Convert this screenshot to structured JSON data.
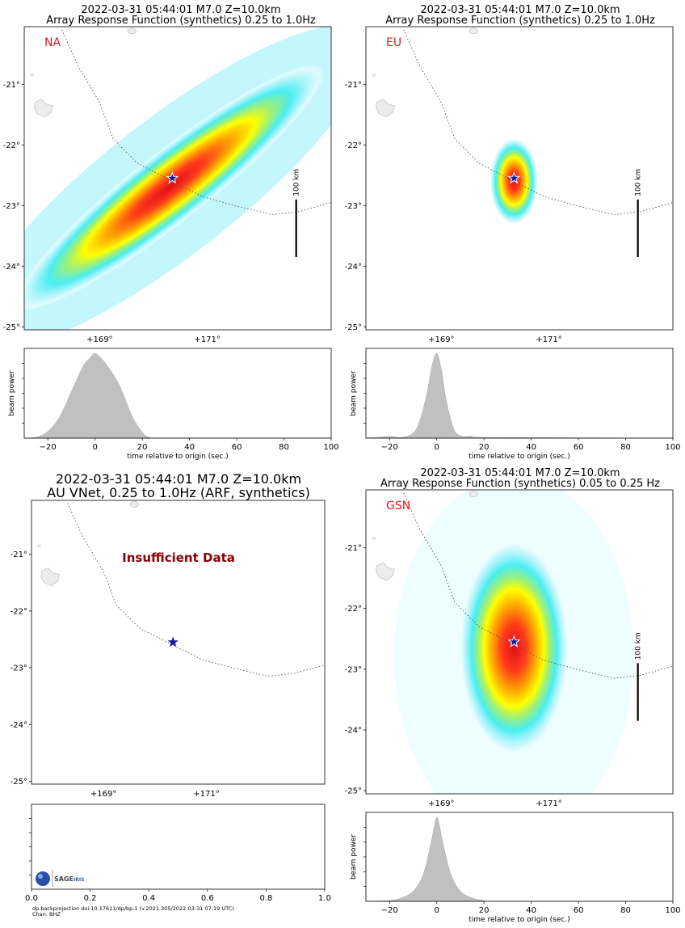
{
  "palette": {
    "heat": [
      "#ffffff",
      "#e0fbff",
      "#aaf4fb",
      "#4aeef2",
      "#9cf07a",
      "#ffff00",
      "#ffb000",
      "#ff3a1a",
      "#e01018"
    ],
    "beam_fill": "#c0c0c0",
    "star_fill": "#1a1aa0",
    "region_color": "#e8141c",
    "insufficient_color": "#8b0000"
  },
  "map_ticks": {
    "lat_labels": [
      "-21°",
      "-22°",
      "-23°",
      "-24°",
      "-25°"
    ],
    "lon_labels": [
      "+169°",
      "+171°"
    ]
  },
  "scale_bar_label": "100 km",
  "beam": {
    "ylabel": "beam power",
    "xlabel": "time relative to origin (sec.)",
    "xticks": [
      "−20",
      "0",
      "20",
      "40",
      "60",
      "80",
      "100"
    ]
  },
  "empty_axis": {
    "xticks": [
      "0.0",
      "0.2",
      "0.4",
      "0.6",
      "0.8",
      "1.0"
    ]
  },
  "credit": {
    "line1": "dp.backprojection doi:10.17611/dp/bp.1 (v.2021.305/2022-03-31 07:19 UTC)",
    "line2": "Chan: BHZ",
    "logo_text": "SAGE",
    "logo_sub": "IRIS"
  },
  "panels": [
    {
      "title_line1": "2022-03-31 05:44:01 M7.0 Z=10.0km",
      "title_line2": "Array Response Function (synthetics) 0.25 to 1.0Hz",
      "region": "NA",
      "note": "",
      "has_beam": true,
      "map_type": "heat",
      "beam_colors": "heat"
    },
    {
      "title_line1": "2022-03-31 05:44:01 M7.0 Z=10.0km",
      "title_line2": "Array Response Function (synthetics) 0.25 to 1.0Hz",
      "region": "EU",
      "note": "",
      "has_beam": true,
      "map_type": "heat"
    },
    {
      "title_line1": "2022-03-31 05:44:01 M7.0 Z=10.0km",
      "title_line2": "AU VNet, 0.25 to 1.0Hz (ARF, synthetics)",
      "region": "",
      "note": "Insufficient Data",
      "has_beam": false,
      "map_type": "empty"
    },
    {
      "title_line1": "2022-03-31 05:44:01 M7.0 Z=10.0km",
      "title_line2": "Array Response Function (synthetics) 0.05 to 0.25 Hz",
      "region": "GSN",
      "note": "",
      "has_beam": true,
      "map_type": "heat"
    }
  ],
  "chart_data": [
    {
      "type": "heatmap",
      "title": "2022-03-31 05:44:01 M7.0 Z=10.0km Array Response Function (synthetics) 0.25 to 1.0Hz",
      "region": "NA",
      "lon_range": [
        167.6,
        173.3
      ],
      "lat_range": [
        -25.05,
        -20.05
      ],
      "epicenter": {
        "lon": 170.35,
        "lat": -22.55
      },
      "response_ellipse": {
        "center": {
          "lon": 170.3,
          "lat": -22.7
        },
        "semi_axis_major_deg": 3.4,
        "semi_axis_minor_deg": 0.62,
        "orientation_deg_from_east": 38
      },
      "beam_power": {
        "type": "area",
        "xlabel": "time relative to origin (sec.)",
        "ylabel": "beam power",
        "xlim": [
          -30,
          100
        ],
        "x": [
          -30,
          -25,
          -20,
          -15,
          -10,
          -5,
          -2,
          0,
          3,
          6,
          10,
          13,
          16,
          20,
          23,
          30,
          100
        ],
        "y": [
          0,
          0.01,
          0.08,
          0.25,
          0.55,
          0.85,
          0.95,
          1.0,
          0.93,
          0.82,
          0.64,
          0.44,
          0.24,
          0.07,
          0.01,
          0,
          0
        ]
      }
    },
    {
      "type": "heatmap",
      "title": "2022-03-31 05:44:01 M7.0 Z=10.0km Array Response Function (synthetics) 0.25 to 1.0Hz",
      "region": "EU",
      "lon_range": [
        167.6,
        173.3
      ],
      "lat_range": [
        -25.05,
        -20.05
      ],
      "epicenter": {
        "lon": 170.35,
        "lat": -22.55
      },
      "response_ellipse": {
        "center": {
          "lon": 170.35,
          "lat": -22.6
        },
        "semi_axis_major_deg": 0.75,
        "semi_axis_minor_deg": 0.42,
        "orientation_deg_from_east": 90
      },
      "beam_power": {
        "type": "area",
        "xlabel": "time relative to origin (sec.)",
        "ylabel": "beam power",
        "xlim": [
          -30,
          100
        ],
        "x": [
          -30,
          -20,
          -15,
          -10,
          -7,
          -4,
          -2,
          0,
          2,
          4,
          7,
          10,
          15,
          20,
          100
        ],
        "y": [
          0,
          0.02,
          0.01,
          0.06,
          0.22,
          0.55,
          0.85,
          1.0,
          0.8,
          0.45,
          0.12,
          0.03,
          0.02,
          0.01,
          0
        ]
      }
    },
    {
      "type": "heatmap",
      "title": "2022-03-31 05:44:01 M7.0 Z=10.0km AU VNet, 0.25 to 1.0Hz (ARF, synthetics)",
      "region": "",
      "lon_range": [
        167.6,
        173.3
      ],
      "lat_range": [
        -25.05,
        -20.05
      ],
      "epicenter": {
        "lon": 170.35,
        "lat": -22.55
      },
      "annotation": "Insufficient Data",
      "empty_axis": {
        "xlim": [
          0.0,
          1.0
        ]
      }
    },
    {
      "type": "heatmap",
      "title": "2022-03-31 05:44:01 M7.0 Z=10.0km Array Response Function (synthetics) 0.05 to 0.25 Hz",
      "region": "GSN",
      "lon_range": [
        167.6,
        173.3
      ],
      "lat_range": [
        -25.05,
        -20.05
      ],
      "epicenter": {
        "lon": 170.35,
        "lat": -22.55
      },
      "response_ellipse": {
        "center": {
          "lon": 170.35,
          "lat": -22.65
        },
        "semi_axis_major_deg": 1.85,
        "semi_axis_minor_deg": 0.95,
        "orientation_deg_from_east": 90
      },
      "beam_power": {
        "type": "area",
        "xlabel": "time relative to origin (sec.)",
        "ylabel": "beam power",
        "xlim": [
          -30,
          100
        ],
        "x": [
          -30,
          -20,
          -15,
          -10,
          -6,
          -3,
          -1,
          0,
          1,
          3,
          6,
          10,
          15,
          20,
          25,
          100
        ],
        "y": [
          0,
          0.01,
          0.04,
          0.12,
          0.3,
          0.62,
          0.9,
          1.0,
          0.92,
          0.64,
          0.32,
          0.12,
          0.04,
          0.01,
          0,
          0
        ]
      }
    }
  ]
}
